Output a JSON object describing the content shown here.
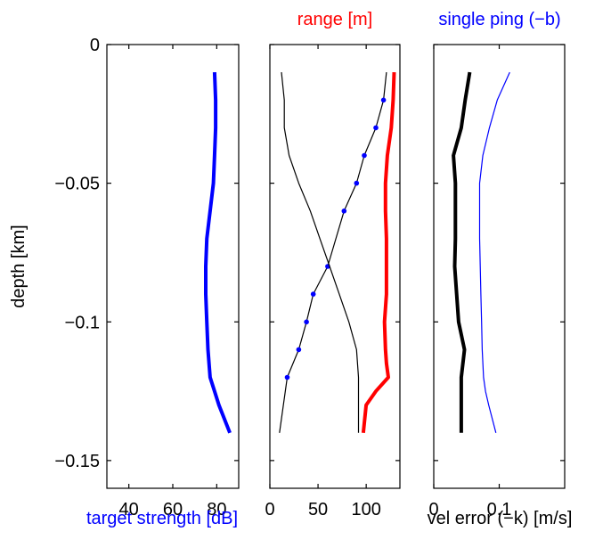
{
  "colors": {
    "blue": "#0000ff",
    "red": "#ff0000",
    "black": "#000000"
  },
  "chart_data": [
    {
      "type": "line",
      "title": "",
      "xlabel": "target strength [dB]",
      "ylabel": "depth [km]",
      "xlim": [
        30,
        90
      ],
      "ylim": [
        -0.16,
        0
      ],
      "xticks": [
        "40",
        "60",
        "80"
      ],
      "yticks": [
        "0",
        "−0.05",
        "−0.1",
        "−0.15"
      ],
      "series": [
        {
          "color": "#0000ff",
          "width": "thick",
          "x": [
            79,
            79.5,
            79.5,
            79,
            78.5,
            77,
            75.5,
            75,
            75,
            75.5,
            76,
            77,
            79,
            81,
            86
          ],
          "y": [
            -0.01,
            -0.02,
            -0.03,
            -0.04,
            -0.05,
            -0.06,
            -0.07,
            -0.08,
            -0.09,
            -0.1,
            -0.11,
            -0.12,
            -0.125,
            -0.13,
            -0.14
          ]
        }
      ]
    },
    {
      "type": "line",
      "title": "range [m]",
      "xlabel": "",
      "xlim": [
        0,
        135
      ],
      "ylim": [
        -0.16,
        0
      ],
      "xticks": [
        "0",
        "50",
        "100"
      ],
      "series": [
        {
          "color": "#ff0000",
          "width": "thick",
          "x": [
            129,
            128,
            126,
            122,
            120,
            120,
            121,
            121,
            121,
            119,
            120,
            121,
            123,
            110,
            100,
            97
          ],
          "y": [
            -0.01,
            -0.02,
            -0.03,
            -0.04,
            -0.05,
            -0.06,
            -0.07,
            -0.08,
            -0.09,
            -0.1,
            -0.11,
            -0.115,
            -0.12,
            -0.125,
            -0.13,
            -0.14
          ]
        },
        {
          "color": "#000000",
          "width": "thin",
          "markers": true,
          "x": [
            121,
            118,
            110,
            98,
            90,
            77,
            60,
            45,
            38,
            30,
            18,
            10
          ],
          "y": [
            -0.01,
            -0.02,
            -0.03,
            -0.04,
            -0.05,
            -0.06,
            -0.08,
            -0.09,
            -0.1,
            -0.11,
            -0.12,
            -0.14
          ],
          "marker_x": [
            118,
            110,
            98,
            90,
            77,
            60,
            45,
            38,
            30,
            18
          ],
          "marker_y": [
            -0.02,
            -0.03,
            -0.04,
            -0.05,
            -0.06,
            -0.08,
            -0.09,
            -0.1,
            -0.11,
            -0.12
          ]
        },
        {
          "color": "#000000",
          "width": "thin",
          "x": [
            12,
            15,
            15,
            20,
            30,
            42,
            52,
            62,
            72,
            82,
            90,
            92,
            92,
            92
          ],
          "y": [
            -0.01,
            -0.02,
            -0.03,
            -0.04,
            -0.05,
            -0.06,
            -0.07,
            -0.08,
            -0.09,
            -0.1,
            -0.11,
            -0.12,
            -0.13,
            -0.14
          ]
        }
      ]
    },
    {
      "type": "line",
      "title": "single ping (−b)",
      "xlabel": "vel error (−k) [m/s]",
      "xlim": [
        0,
        0.2
      ],
      "ylim": [
        -0.16,
        0
      ],
      "xticks": [
        "0",
        "0.1"
      ],
      "series": [
        {
          "color": "#000000",
          "width": "thick",
          "x": [
            0.055,
            0.048,
            0.042,
            0.03,
            0.033,
            0.033,
            0.033,
            0.032,
            0.035,
            0.038,
            0.047,
            0.042,
            0.042,
            0.042,
            0.042
          ],
          "y": [
            -0.01,
            -0.02,
            -0.03,
            -0.04,
            -0.05,
            -0.06,
            -0.07,
            -0.08,
            -0.09,
            -0.1,
            -0.11,
            -0.12,
            -0.125,
            -0.13,
            -0.14
          ]
        },
        {
          "color": "#0000ff",
          "width": "thin",
          "x": [
            0.116,
            0.097,
            0.085,
            0.075,
            0.07,
            0.07,
            0.07,
            0.071,
            0.072,
            0.073,
            0.074,
            0.076,
            0.079,
            0.084,
            0.095
          ],
          "y": [
            -0.01,
            -0.02,
            -0.03,
            -0.04,
            -0.05,
            -0.06,
            -0.07,
            -0.08,
            -0.09,
            -0.1,
            -0.11,
            -0.12,
            -0.125,
            -0.13,
            -0.14
          ]
        }
      ]
    }
  ]
}
